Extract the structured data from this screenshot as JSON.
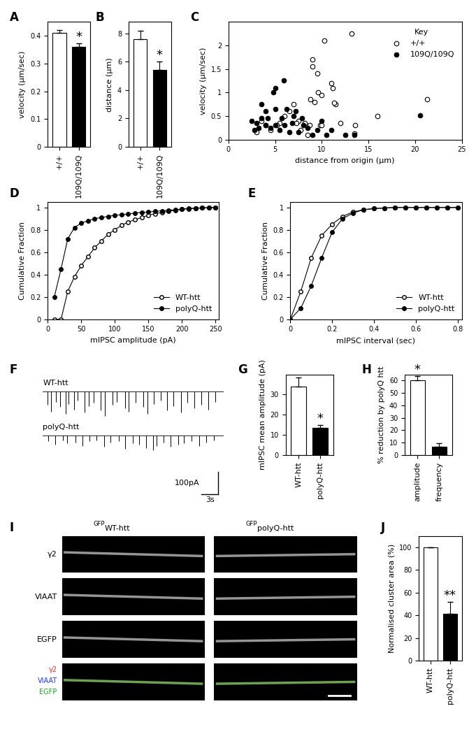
{
  "chart_data": [
    {
      "panel": "A",
      "type": "bar",
      "categories": [
        "+/+",
        "109Q/109Q"
      ],
      "values": [
        0.41,
        0.36
      ],
      "errors": [
        0.012,
        0.012
      ],
      "colors": [
        "#ffffff",
        "#000000"
      ],
      "ylabel": "velocity (µm/sec)",
      "ylim": [
        0,
        0.45
      ],
      "yticks": [
        0,
        0.1,
        0.2,
        0.3,
        0.4
      ],
      "annotations": [
        {
          "category": "109Q/109Q",
          "text": "*"
        }
      ]
    },
    {
      "panel": "B",
      "type": "bar",
      "categories": [
        "+/+",
        "109Q/109Q"
      ],
      "values": [
        7.6,
        5.4
      ],
      "errors": [
        0.6,
        0.6
      ],
      "colors": [
        "#ffffff",
        "#000000"
      ],
      "ylabel": "distance (µm)",
      "ylim": [
        0,
        8.8
      ],
      "yticks": [
        0,
        2,
        4,
        6,
        8
      ],
      "annotations": [
        {
          "category": "109Q/109Q",
          "text": "*"
        }
      ]
    },
    {
      "panel": "C",
      "type": "scatter",
      "xlabel": "distance from origin (µm)",
      "ylabel": "velocity (µm/sec)",
      "xlim": [
        0,
        25
      ],
      "xticks": [
        0,
        5,
        10,
        15,
        20,
        25
      ],
      "ylim": [
        0,
        2.5
      ],
      "yticks": [
        0,
        0.5,
        1,
        1.5,
        2
      ],
      "legend": "upper right",
      "legend_title": "Key",
      "series": [
        {
          "name": "+/+",
          "color": "#ffffff",
          "marker": "o",
          "x": [
            10.3,
            13.2,
            9.0,
            9.0,
            9.5,
            11.0,
            11.2,
            9.6,
            10.0,
            8.8,
            9.2,
            11.5,
            11.3,
            21.3,
            16.0,
            13.6,
            13.5,
            9.8,
            10.0,
            8.7,
            8.2,
            7.5,
            7.0,
            7.3,
            6.5,
            6.0,
            5.5,
            4.0,
            3.0,
            3.5,
            4.5,
            7.7,
            8.5,
            12.0,
            5.2
          ],
          "values": [
            2.1,
            2.25,
            1.7,
            1.55,
            1.4,
            1.2,
            1.1,
            1.0,
            0.95,
            0.85,
            0.8,
            0.75,
            0.78,
            0.85,
            0.5,
            0.3,
            0.12,
            0.3,
            0.3,
            0.3,
            0.35,
            0.4,
            0.75,
            0.35,
            0.6,
            0.5,
            0.35,
            0.3,
            0.15,
            0.4,
            0.2,
            0.2,
            0.1,
            0.35,
            0.3
          ]
        },
        {
          "name": "109Q/109Q",
          "color": "#000000",
          "marker": "o",
          "x": [
            5.9,
            5.0,
            4.8,
            3.5,
            4.0,
            5.0,
            6.2,
            7.2,
            7.0,
            2.5,
            3.0,
            3.5,
            4.0,
            4.5,
            5.0,
            5.5,
            6.0,
            6.5,
            7.5,
            8.0,
            8.5,
            9.0,
            10.5,
            10.0,
            11.0,
            12.5,
            2.8,
            3.2,
            4.2,
            5.7,
            6.8,
            7.9,
            20.5,
            9.5,
            13.5
          ],
          "values": [
            1.25,
            1.1,
            1.0,
            0.75,
            0.6,
            0.65,
            0.65,
            0.6,
            0.5,
            0.4,
            0.35,
            0.45,
            0.3,
            0.25,
            0.3,
            0.2,
            0.3,
            0.15,
            0.15,
            0.3,
            0.25,
            0.1,
            0.1,
            0.4,
            0.2,
            0.1,
            0.2,
            0.25,
            0.45,
            0.45,
            0.35,
            0.45,
            0.52,
            0.2,
            0.1
          ]
        }
      ]
    },
    {
      "panel": "D",
      "type": "line",
      "xlabel": "mIPSC amplitude (pA)",
      "ylabel": "Cumulative Fraction",
      "xlim": [
        0,
        255
      ],
      "xticks": [
        0,
        50,
        100,
        150,
        200,
        250
      ],
      "ylim": [
        0,
        1.05
      ],
      "yticks": [
        0,
        0.2,
        0.4,
        0.6,
        0.8,
        1
      ],
      "legend": "lower right",
      "marker": "o",
      "x": [
        10,
        20,
        30,
        40,
        50,
        60,
        70,
        80,
        90,
        100,
        110,
        120,
        130,
        140,
        150,
        160,
        170,
        180,
        190,
        200,
        210,
        220,
        230,
        240,
        250
      ],
      "series": [
        {
          "name": "WT-htt",
          "color": "#ffffff",
          "values": [
            0,
            0,
            0.25,
            0.38,
            0.48,
            0.56,
            0.64,
            0.7,
            0.76,
            0.8,
            0.84,
            0.87,
            0.89,
            0.91,
            0.93,
            0.945,
            0.955,
            0.965,
            0.975,
            0.983,
            0.989,
            0.992,
            0.996,
            0.998,
            1
          ]
        },
        {
          "name": "polyQ-htt",
          "color": "#000000",
          "values": [
            0.2,
            0.45,
            0.72,
            0.82,
            0.86,
            0.88,
            0.9,
            0.91,
            0.92,
            0.93,
            0.935,
            0.94,
            0.95,
            0.955,
            0.96,
            0.965,
            0.97,
            0.975,
            0.98,
            0.985,
            0.99,
            0.993,
            0.996,
            0.998,
            1
          ]
        }
      ]
    },
    {
      "panel": "E",
      "type": "line",
      "xlabel": "mIPSC interval (sec)",
      "ylabel": "Cumulative Fraction",
      "xlim": [
        0,
        0.82
      ],
      "xticks": [
        0,
        0.2,
        0.4,
        0.6,
        0.8
      ],
      "ylim": [
        0,
        1.05
      ],
      "yticks": [
        0,
        0.2,
        0.4,
        0.6,
        0.8,
        1
      ],
      "legend": "lower right",
      "marker": "o",
      "x": [
        0,
        0.05,
        0.1,
        0.15,
        0.2,
        0.25,
        0.3,
        0.35,
        0.4,
        0.45,
        0.5,
        0.55,
        0.6,
        0.65,
        0.7,
        0.75,
        0.8
      ],
      "series": [
        {
          "name": "WT-htt",
          "color": "#ffffff",
          "values": [
            0,
            0.25,
            0.55,
            0.75,
            0.85,
            0.92,
            0.96,
            0.98,
            0.99,
            0.995,
            1,
            1,
            1,
            1,
            1,
            1,
            1
          ]
        },
        {
          "name": "polyQ-htt",
          "color": "#000000",
          "values": [
            0,
            0.1,
            0.3,
            0.55,
            0.78,
            0.9,
            0.95,
            0.98,
            0.99,
            0.995,
            1,
            1,
            1,
            1,
            1,
            1,
            1
          ]
        }
      ]
    },
    {
      "panel": "F",
      "type": "trace",
      "duration": 32,
      "traces": [
        {
          "name": "WT-htt",
          "times": [
            0.8,
            1.5,
            2.3,
            3.1,
            4.0,
            4.6,
            5.5,
            6.2,
            7.4,
            8.1,
            9.0,
            10.2,
            11.0,
            12.3,
            13.1,
            14.5,
            15.2,
            16.4,
            17.8,
            18.5,
            19.6,
            20.9,
            22.0,
            23.1,
            24.4,
            25.6,
            26.8,
            28.0,
            29.3,
            30.5
          ],
          "amplitudes": [
            60,
            90,
            45,
            70,
            100,
            55,
            80,
            40,
            95,
            65,
            50,
            85,
            110,
            60,
            45,
            75,
            90,
            50,
            70,
            100,
            55,
            40,
            85,
            65,
            95,
            50,
            75,
            60,
            80,
            45
          ]
        },
        {
          "name": "polyQ-htt",
          "times": [
            1.0,
            2.2,
            3.5,
            4.3,
            5.8,
            7.0,
            8.2,
            9.5,
            10.8,
            11.9,
            13.4,
            14.6,
            15.9,
            17.0,
            18.3,
            19.5,
            20.1,
            21.4,
            22.6,
            23.9,
            25.0,
            26.3,
            27.7,
            28.9,
            30.2
          ],
          "amplitudes": [
            25,
            40,
            20,
            35,
            30,
            45,
            25,
            20,
            50,
            30,
            25,
            60,
            35,
            40,
            55,
            65,
            45,
            30,
            50,
            40,
            35,
            25,
            45,
            30,
            20
          ]
        }
      ],
      "scale_bar": {
        "amplitude": 100,
        "amplitude_label": "100pA",
        "time": 3,
        "time_label": "3s"
      }
    },
    {
      "panel": "G",
      "type": "bar",
      "categories": [
        "WT-htt",
        "polyQ-htt"
      ],
      "values": [
        34,
        13.5
      ],
      "errors": [
        4.5,
        1.5
      ],
      "colors": [
        "#ffffff",
        "#000000"
      ],
      "ylabel": "mIPSC mean amplitude (pA)",
      "ylim": [
        0,
        40
      ],
      "yticks": [
        0,
        10,
        20,
        30
      ],
      "annotations": [
        {
          "category": "polyQ-htt",
          "text": "*"
        }
      ]
    },
    {
      "panel": "H",
      "type": "bar",
      "categories": [
        "amplitude",
        "frequency"
      ],
      "values": [
        60,
        7
      ],
      "errors": [
        3.5,
        2.5
      ],
      "colors": [
        "#ffffff",
        "#000000"
      ],
      "ylabel": "% reduction by polyQ htt",
      "ylim": [
        0,
        65
      ],
      "yticks": [
        0,
        10,
        20,
        30,
        40,
        50,
        60
      ],
      "annotations": [
        {
          "category": "amplitude",
          "text": "*"
        }
      ]
    },
    {
      "panel": "I",
      "type": "image",
      "columns": [
        {
          "superscript": "GFP",
          "title": "WT-htt"
        },
        {
          "superscript": "GFP",
          "title": "polyQ-htt"
        }
      ],
      "rows": [
        "γ2",
        "VIAAT",
        "EGFP"
      ],
      "merge_labels": [
        {
          "text": "γ2",
          "color": "#ff2020"
        },
        {
          "text": "VIAAT",
          "color": "#2030ff"
        },
        {
          "text": "EGFP",
          "color": "#10b010"
        }
      ]
    },
    {
      "panel": "J",
      "type": "bar",
      "categories": [
        "WT-htt",
        "polyQ-htt"
      ],
      "values": [
        100,
        41
      ],
      "errors": [
        0,
        11
      ],
      "colors": [
        "#ffffff",
        "#000000"
      ],
      "ylabel": "Normalised cluster area (%)",
      "ylim": [
        0,
        110
      ],
      "yticks": [
        0,
        20,
        40,
        60,
        80,
        100
      ],
      "annotations": [
        {
          "category": "polyQ-htt",
          "text": "**"
        }
      ]
    }
  ]
}
